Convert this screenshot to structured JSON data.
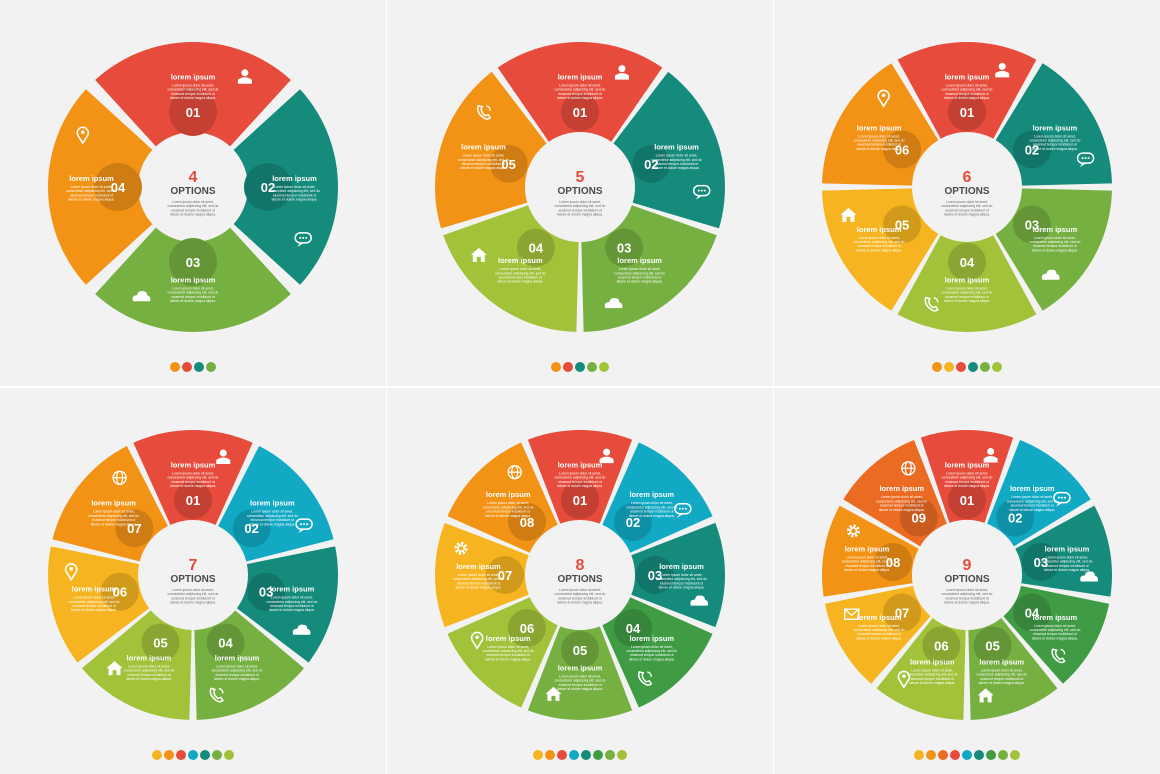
{
  "title_word": "OPTIONS",
  "segment_title": "lorem ipsum",
  "segment_body": [
    "Lorem ipsum dolor sit amet,",
    "consectetur adipiscing elit, sed do",
    "eiusmod tempor incididunt ut",
    "labore et dolore magna aliqua."
  ],
  "center_body": [
    "Lorem ipsum dolor sit amet,",
    "consectetur adipiscing elit, sed do",
    "eiusmod tempor incididunt ut",
    "labore et dolore magna aliqua."
  ],
  "colors": {
    "red": "#e64b3c",
    "orange": "#f39315",
    "amber": "#f6b520",
    "teal": "#148b7b",
    "cyan": "#11a9c4",
    "green": "#76b041",
    "lime": "#a2c23a",
    "dark_green": "#3f9c45",
    "dark_orange": "#ec6b23",
    "title_red": "#e64b3c"
  },
  "panels": [
    {
      "number": "4",
      "segments": [
        {
          "label": "01",
          "color": "red",
          "icon": "user-icon"
        },
        {
          "label": "02",
          "color": "teal",
          "icon": "speech-bubble-icon"
        },
        {
          "label": "03",
          "color": "green",
          "icon": "cloud-icon"
        },
        {
          "label": "04",
          "color": "orange",
          "icon": "location-pin-icon"
        }
      ],
      "legend": [
        "orange",
        "red",
        "teal",
        "green"
      ]
    },
    {
      "number": "5",
      "segments": [
        {
          "label": "01",
          "color": "red",
          "icon": "user-icon"
        },
        {
          "label": "02",
          "color": "teal",
          "icon": "speech-bubble-icon"
        },
        {
          "label": "03",
          "color": "green",
          "icon": "cloud-icon"
        },
        {
          "label": "04",
          "color": "lime",
          "icon": "home-icon"
        },
        {
          "label": "05",
          "color": "orange",
          "icon": "phone-icon"
        }
      ],
      "legend": [
        "orange",
        "red",
        "teal",
        "green",
        "lime"
      ]
    },
    {
      "number": "6",
      "segments": [
        {
          "label": "01",
          "color": "red",
          "icon": "user-icon"
        },
        {
          "label": "02",
          "color": "teal",
          "icon": "speech-bubble-icon"
        },
        {
          "label": "03",
          "color": "green",
          "icon": "cloud-icon"
        },
        {
          "label": "04",
          "color": "lime",
          "icon": "phone-icon"
        },
        {
          "label": "05",
          "color": "amber",
          "icon": "home-icon"
        },
        {
          "label": "06",
          "color": "orange",
          "icon": "location-pin-icon"
        }
      ],
      "legend": [
        "orange",
        "amber",
        "red",
        "teal",
        "green",
        "lime"
      ]
    },
    {
      "number": "7",
      "segments": [
        {
          "label": "01",
          "color": "red",
          "icon": "user-icon"
        },
        {
          "label": "02",
          "color": "cyan",
          "icon": "speech-bubble-icon"
        },
        {
          "label": "03",
          "color": "teal",
          "icon": "cloud-icon"
        },
        {
          "label": "04",
          "color": "green",
          "icon": "phone-icon"
        },
        {
          "label": "05",
          "color": "lime",
          "icon": "home-icon"
        },
        {
          "label": "06",
          "color": "amber",
          "icon": "location-pin-icon"
        },
        {
          "label": "07",
          "color": "orange",
          "icon": "globe-icon"
        }
      ],
      "legend": [
        "amber",
        "orange",
        "red",
        "cyan",
        "teal",
        "green",
        "lime"
      ]
    },
    {
      "number": "8",
      "segments": [
        {
          "label": "01",
          "color": "red",
          "icon": "user-icon"
        },
        {
          "label": "02",
          "color": "cyan",
          "icon": "speech-bubble-icon"
        },
        {
          "label": "03",
          "color": "teal",
          "icon": "cloud-icon"
        },
        {
          "label": "04",
          "color": "dark_green",
          "icon": "phone-icon"
        },
        {
          "label": "05",
          "color": "green",
          "icon": "home-icon"
        },
        {
          "label": "06",
          "color": "lime",
          "icon": "location-pin-icon"
        },
        {
          "label": "07",
          "color": "amber",
          "icon": "gear-icon"
        },
        {
          "label": "08",
          "color": "orange",
          "icon": "globe-icon"
        }
      ],
      "legend": [
        "amber",
        "orange",
        "red",
        "cyan",
        "teal",
        "dark_green",
        "green",
        "lime"
      ]
    },
    {
      "number": "9",
      "segments": [
        {
          "label": "01",
          "color": "red",
          "icon": "user-icon"
        },
        {
          "label": "02",
          "color": "cyan",
          "icon": "speech-bubble-icon"
        },
        {
          "label": "03",
          "color": "teal",
          "icon": "cloud-icon"
        },
        {
          "label": "04",
          "color": "dark_green",
          "icon": "phone-icon"
        },
        {
          "label": "05",
          "color": "green",
          "icon": "home-icon"
        },
        {
          "label": "06",
          "color": "lime",
          "icon": "location-pin-icon"
        },
        {
          "label": "07",
          "color": "amber",
          "icon": "mail-icon"
        },
        {
          "label": "08",
          "color": "orange",
          "icon": "gear-icon"
        },
        {
          "label": "09",
          "color": "dark_orange",
          "icon": "globe-icon"
        }
      ],
      "legend": [
        "amber",
        "orange",
        "dark_orange",
        "red",
        "cyan",
        "teal",
        "dark_green",
        "green",
        "lime"
      ]
    }
  ]
}
